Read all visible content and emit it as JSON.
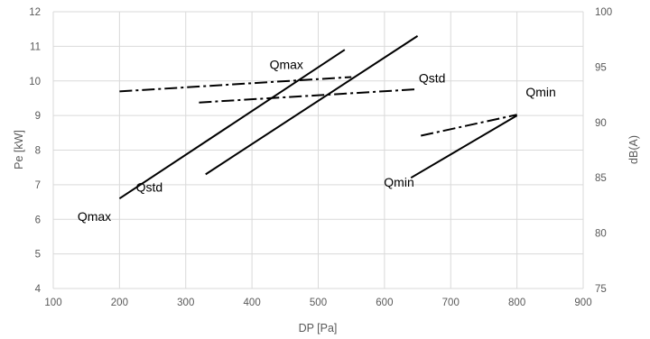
{
  "chart_data": {
    "type": "line",
    "xlabel": "DP [Pa]",
    "ylabel": "Pe [kW]",
    "y2label": "dB(A)",
    "xlim": [
      100,
      900
    ],
    "ylim": [
      4,
      12
    ],
    "y2lim": [
      75,
      100
    ],
    "x_ticks": [
      100,
      200,
      300,
      400,
      500,
      600,
      700,
      800,
      900
    ],
    "y_ticks": [
      4,
      5,
      6,
      7,
      8,
      9,
      10,
      11,
      12
    ],
    "y2_ticks": [
      75,
      80,
      85,
      90,
      95,
      100
    ],
    "grid": true,
    "series": [
      {
        "name": "Qmax",
        "axis": "left",
        "style": "solid",
        "x": [
          200,
          540
        ],
        "y": [
          6.6,
          10.9
        ]
      },
      {
        "name": "Qstd",
        "axis": "left",
        "style": "solid",
        "x": [
          330,
          650
        ],
        "y": [
          7.3,
          11.3
        ]
      },
      {
        "name": "Qmin",
        "axis": "left",
        "style": "solid",
        "x": [
          640,
          800
        ],
        "y": [
          7.2,
          9.0
        ]
      },
      {
        "name": "Qmax",
        "axis": "right",
        "style": "dashdot",
        "x": [
          200,
          550
        ],
        "y": [
          92.8,
          94.1
        ]
      },
      {
        "name": "Qstd",
        "axis": "right",
        "style": "dashdot",
        "x": [
          320,
          650
        ],
        "y": [
          91.8,
          93.0
        ]
      },
      {
        "name": "Qmin",
        "axis": "right",
        "style": "dashdot",
        "x": [
          655,
          800
        ],
        "y": [
          88.8,
          90.7
        ]
      }
    ],
    "annotations": [
      {
        "text": "Qmax",
        "x": 162,
        "y": 5.95,
        "axis": "left"
      },
      {
        "text": "Qstd",
        "x": 245,
        "y": 6.8,
        "axis": "left"
      },
      {
        "text": "Qmax",
        "x": 452,
        "y": 10.35,
        "axis": "left"
      },
      {
        "text": "Qstd",
        "x": 672,
        "y": 9.95,
        "axis": "left"
      },
      {
        "text": "Qmin",
        "x": 622,
        "y": 6.95,
        "axis": "left"
      },
      {
        "text": "Qmin",
        "x": 836,
        "y": 9.55,
        "axis": "left"
      }
    ]
  }
}
